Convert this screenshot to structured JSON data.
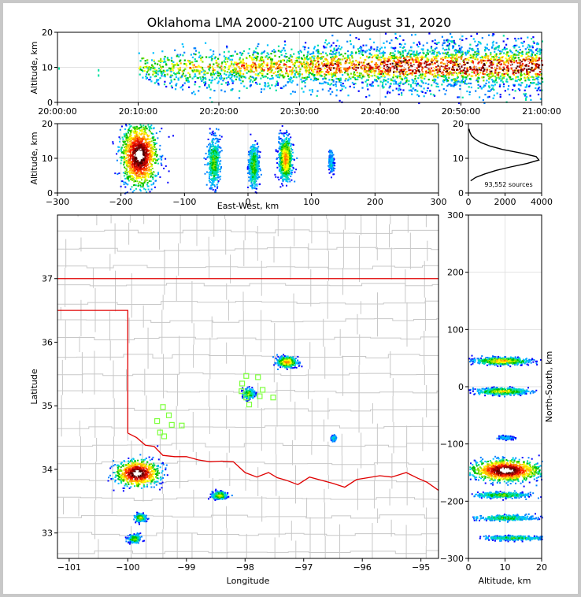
{
  "title": "Oklahoma LMA 2000-2100 UTC August 31, 2020",
  "panels": {
    "time_height": {
      "ylabel": "Altitude, km",
      "xticks": [
        "20:00:00",
        "20:10:00",
        "20:20:00",
        "20:30:00",
        "20:40:00",
        "20:50:00",
        "21:00:00"
      ],
      "yticks": [
        "0",
        "10",
        "20"
      ]
    },
    "ew_height": {
      "ylabel": "Altitude, km",
      "xlabel": "East-West, km",
      "xticks": [
        "−300",
        "−200",
        "−100",
        "0",
        "100",
        "200",
        "300"
      ],
      "yticks": [
        "0",
        "10",
        "20"
      ]
    },
    "histogram": {
      "xticks": [
        "0",
        "2000",
        "4000"
      ],
      "yticks": [
        "0",
        "10",
        "20"
      ],
      "annotation": "93,552 sources"
    },
    "plan_view": {
      "xlabel": "Longitude",
      "ylabel": "Latitude",
      "xticks": [
        "−101",
        "−100",
        "−99",
        "−98",
        "−97",
        "−96",
        "−95"
      ],
      "yticks": [
        "33",
        "34",
        "35",
        "36",
        "37"
      ]
    },
    "ns_height": {
      "xlabel": "Altitude, km",
      "ylabel": "North-South, km",
      "xticks": [
        "0",
        "10",
        "20"
      ],
      "yticks": [
        "−300",
        "−200",
        "−100",
        "0",
        "100",
        "200",
        "300"
      ]
    }
  },
  "colors": {
    "state_border": "#e00000",
    "county_lines": "#c8c8c8",
    "stations": "#7fff3f",
    "frame": "#c8c8c8"
  },
  "chart_data": [
    {
      "type": "heatmap",
      "name": "time-height source density",
      "x_range": [
        "20:00:00",
        "21:00:00"
      ],
      "ylim": [
        0,
        20
      ],
      "blobs": [
        {
          "t_min": 10,
          "t_max": 14,
          "z_min": 5,
          "z_max": 14,
          "density": 0.35
        },
        {
          "t_min": 14,
          "t_max": 22,
          "z_min": 4,
          "z_max": 15,
          "density": 0.45
        },
        {
          "t_min": 22,
          "t_max": 32,
          "z_min": 4,
          "z_max": 16,
          "density": 0.6
        },
        {
          "t_min": 32,
          "t_max": 40,
          "z_min": 4,
          "z_max": 17,
          "density": 0.75
        },
        {
          "t_min": 40,
          "t_max": 60,
          "z_min": 3,
          "z_max": 18,
          "density": 0.95
        }
      ]
    },
    {
      "type": "heatmap",
      "name": "east-west vs altitude",
      "xlim": [
        -300,
        300
      ],
      "ylim": [
        0,
        20
      ],
      "clusters": [
        {
          "x": -172,
          "z": 11,
          "sx": 14,
          "sz": 4.5,
          "intensity": 1.0
        },
        {
          "x": -55,
          "z": 9,
          "sx": 5,
          "sz": 3.5,
          "intensity": 0.35
        },
        {
          "x": 8,
          "z": 8,
          "sx": 4,
          "sz": 3,
          "intensity": 0.35
        },
        {
          "x": 58,
          "z": 10,
          "sx": 5,
          "sz": 3,
          "intensity": 0.6
        },
        {
          "x": 130,
          "z": 9,
          "sx": 2,
          "sz": 1.5,
          "intensity": 0.15
        }
      ]
    },
    {
      "type": "line",
      "name": "source altitude histogram",
      "xlim": [
        0,
        4000
      ],
      "ylim": [
        0,
        20
      ],
      "z": [
        3.5,
        4.5,
        5.5,
        6.5,
        7.5,
        8.5,
        9.5,
        10.5,
        11.5,
        12.5,
        13.5,
        14.5,
        15.5,
        16.5,
        17.5,
        18.5
      ],
      "counts": [
        120,
        400,
        900,
        1500,
        2300,
        3200,
        3850,
        3700,
        2900,
        1900,
        1200,
        700,
        380,
        170,
        80,
        30
      ]
    },
    {
      "type": "scatter",
      "name": "plan view source density",
      "xlim": [
        -101.2,
        -94.7
      ],
      "ylim": [
        32.6,
        38.0
      ],
      "clusters": [
        {
          "lon": -99.85,
          "lat": 33.95,
          "slon": 0.18,
          "slat": 0.1,
          "intensity": 1.0
        },
        {
          "lon": -99.8,
          "lat": 33.25,
          "slon": 0.05,
          "slat": 0.03,
          "intensity": 0.4
        },
        {
          "lon": -99.9,
          "lat": 32.92,
          "slon": 0.05,
          "slat": 0.03,
          "intensity": 0.4
        },
        {
          "lon": -98.45,
          "lat": 33.6,
          "slon": 0.06,
          "slat": 0.03,
          "intensity": 0.45
        },
        {
          "lon": -97.3,
          "lat": 35.7,
          "slon": 0.08,
          "slat": 0.04,
          "intensity": 0.6
        },
        {
          "lon": -97.95,
          "lat": 35.2,
          "slon": 0.05,
          "slat": 0.04,
          "intensity": 0.35
        },
        {
          "lon": -96.5,
          "lat": 34.5,
          "slon": 0.02,
          "slat": 0.02,
          "intensity": 0.2
        }
      ],
      "stations": [
        {
          "lon": -99.4,
          "lat": 34.98
        },
        {
          "lon": -99.3,
          "lat": 34.85
        },
        {
          "lon": -99.5,
          "lat": 34.76
        },
        {
          "lon": -99.25,
          "lat": 34.7
        },
        {
          "lon": -99.45,
          "lat": 34.58
        },
        {
          "lon": -99.38,
          "lat": 34.52
        },
        {
          "lon": -99.08,
          "lat": 34.69
        },
        {
          "lon": -97.98,
          "lat": 35.47
        },
        {
          "lon": -98.05,
          "lat": 35.35
        },
        {
          "lon": -98.06,
          "lat": 35.23
        },
        {
          "lon": -97.98,
          "lat": 35.13
        },
        {
          "lon": -97.93,
          "lat": 35.02
        },
        {
          "lon": -97.78,
          "lat": 35.45
        },
        {
          "lon": -97.7,
          "lat": 35.25
        },
        {
          "lon": -97.75,
          "lat": 35.15
        },
        {
          "lon": -97.52,
          "lat": 35.13
        }
      ]
    },
    {
      "type": "heatmap",
      "name": "altitude vs north-south",
      "xlim": [
        0,
        20
      ],
      "ylim": [
        -300,
        300
      ],
      "clusters": [
        {
          "z": 10,
          "y": -145,
          "sz": 4.5,
          "sy": 9,
          "intensity": 1.0
        },
        {
          "z": 9,
          "y": 46,
          "sz": 3.5,
          "sy": 3,
          "intensity": 0.55
        },
        {
          "z": 9,
          "y": -7,
          "sz": 3.5,
          "sy": 3,
          "intensity": 0.45
        },
        {
          "z": 9,
          "y": -188,
          "sz": 3.5,
          "sy": 2.5,
          "intensity": 0.35
        },
        {
          "z": 10,
          "y": -228,
          "sz": 4,
          "sy": 2.5,
          "intensity": 0.3
        },
        {
          "z": 12,
          "y": -263,
          "sz": 4,
          "sy": 2,
          "intensity": 0.3
        },
        {
          "z": 10,
          "y": -88,
          "sz": 1,
          "sy": 1.5,
          "intensity": 0.15
        }
      ]
    }
  ]
}
